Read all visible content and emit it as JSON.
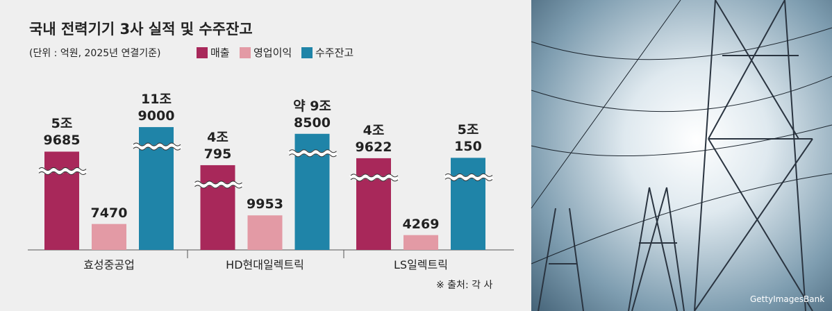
{
  "chart_data": {
    "type": "bar",
    "title": "국내 전력기기 3사 실적 및 수주잔고",
    "subtitle": "(단위 : 억원, 2025년 연결기준)",
    "categories": [
      "효성중공업",
      "HD현대일렉트릭",
      "LS일렉트릭"
    ],
    "series": [
      {
        "name": "매출",
        "color": "#a8285a",
        "values": [
          59685,
          40795,
          49622
        ],
        "value_labels": [
          "5조\n9685",
          "4조\n795",
          "4조\n9622"
        ]
      },
      {
        "name": "영업이익",
        "color": "#e39aa5",
        "values": [
          7470,
          9953,
          4269
        ]
      },
      {
        "name": "수주잔고",
        "color": "#1f84a8",
        "values": [
          119000,
          98500,
          50150
        ],
        "value_labels": [
          "11조\n9000",
          "약 9조\n8500",
          "5조\n150"
        ]
      }
    ],
    "source": "※ 출처: 각 사",
    "photo_credit": "GettyImagesBank"
  }
}
